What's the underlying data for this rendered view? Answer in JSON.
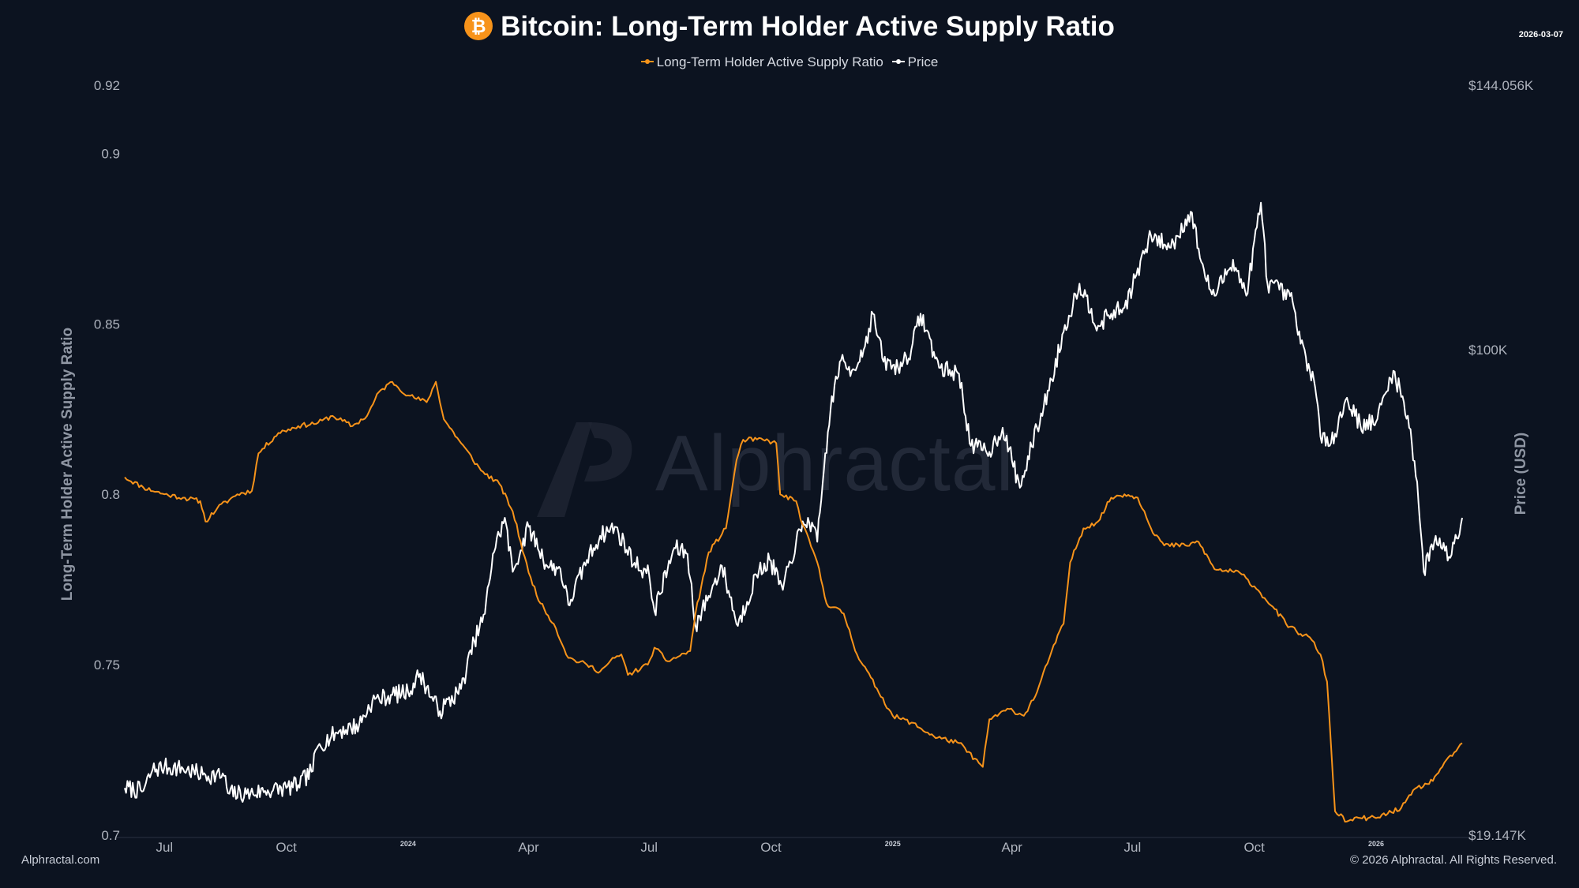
{
  "header": {
    "icon": "bitcoin-icon",
    "title": "Bitcoin: Long-Term Holder Active Supply Ratio",
    "date": "2026-03-07"
  },
  "colors": {
    "background": "#0c1320",
    "ratio": "#f7931a",
    "price": "#ffffff"
  },
  "footer": {
    "left": "Alphractal.com",
    "right": "© 2026 Alphractal. All Rights Reserved."
  },
  "watermark": "Alphractal",
  "chart_data": {
    "type": "line",
    "title": "Bitcoin: Long-Term Holder Active Supply Ratio",
    "legend": [
      "Long-Term Holder Active Supply Ratio",
      "Price"
    ],
    "legend_position": "top-center",
    "ylabel": "Long-Term Holder Active Supply Ratio",
    "y2label": "Price (USD)",
    "ylim": [
      0.7,
      0.92
    ],
    "y_ticks": [
      {
        "value": 0.92,
        "label": "0.92"
      },
      {
        "value": 0.9,
        "label": "0.9"
      },
      {
        "value": 0.85,
        "label": "0.85"
      },
      {
        "value": 0.8,
        "label": "0.8"
      },
      {
        "value": 0.75,
        "label": "0.75"
      },
      {
        "value": 0.7,
        "label": "0.7"
      }
    ],
    "y2_ticks": [
      {
        "value": 144056,
        "label": "$144.056K"
      },
      {
        "value": 100000,
        "label": "$100K"
      },
      {
        "value": 19147,
        "label": "$19.147K"
      }
    ],
    "y2_lim": [
      19147,
      144056
    ],
    "x_range": [
      "2023-06-01",
      "2026-03-07"
    ],
    "x_ticks": [
      {
        "date": "2023-07-01",
        "label": "Jul",
        "major": false
      },
      {
        "date": "2023-10-01",
        "label": "Oct",
        "major": false
      },
      {
        "date": "2024-01-01",
        "label": "2024",
        "major": true
      },
      {
        "date": "2024-04-01",
        "label": "Apr",
        "major": false
      },
      {
        "date": "2024-07-01",
        "label": "Jul",
        "major": false
      },
      {
        "date": "2024-10-01",
        "label": "Oct",
        "major": false
      },
      {
        "date": "2025-01-01",
        "label": "2025",
        "major": true
      },
      {
        "date": "2025-04-01",
        "label": "Apr",
        "major": false
      },
      {
        "date": "2025-07-01",
        "label": "Jul",
        "major": false
      },
      {
        "date": "2025-10-01",
        "label": "Oct",
        "major": false
      },
      {
        "date": "2026-01-01",
        "label": "2026",
        "major": true
      }
    ],
    "series": [
      {
        "name": "Long-Term Holder Active Supply Ratio",
        "axis": "left",
        "points": [
          [
            "2023-06-01",
            0.805
          ],
          [
            "2023-06-15",
            0.802
          ],
          [
            "2023-07-01",
            0.8
          ],
          [
            "2023-07-15",
            0.799
          ],
          [
            "2023-07-28",
            0.798
          ],
          [
            "2023-08-01",
            0.792
          ],
          [
            "2023-08-10",
            0.796
          ],
          [
            "2023-08-25",
            0.8
          ],
          [
            "2023-09-05",
            0.801
          ],
          [
            "2023-09-10",
            0.812
          ],
          [
            "2023-09-25",
            0.818
          ],
          [
            "2023-10-10",
            0.82
          ],
          [
            "2023-10-25",
            0.821
          ],
          [
            "2023-11-05",
            0.823
          ],
          [
            "2023-11-20",
            0.82
          ],
          [
            "2023-12-01",
            0.823
          ],
          [
            "2023-12-10",
            0.83
          ],
          [
            "2023-12-20",
            0.833
          ],
          [
            "2024-01-01",
            0.829
          ],
          [
            "2024-01-15",
            0.827
          ],
          [
            "2024-01-22",
            0.833
          ],
          [
            "2024-01-28",
            0.822
          ],
          [
            "2024-02-10",
            0.815
          ],
          [
            "2024-02-25",
            0.807
          ],
          [
            "2024-03-10",
            0.803
          ],
          [
            "2024-03-20",
            0.795
          ],
          [
            "2024-04-01",
            0.777
          ],
          [
            "2024-04-10",
            0.768
          ],
          [
            "2024-04-20",
            0.762
          ],
          [
            "2024-05-01",
            0.752
          ],
          [
            "2024-05-15",
            0.75
          ],
          [
            "2024-05-25",
            0.748
          ],
          [
            "2024-06-05",
            0.752
          ],
          [
            "2024-06-10",
            0.753
          ],
          [
            "2024-06-15",
            0.747
          ],
          [
            "2024-06-30",
            0.75
          ],
          [
            "2024-07-05",
            0.755
          ],
          [
            "2024-07-15",
            0.751
          ],
          [
            "2024-08-01",
            0.754
          ],
          [
            "2024-08-05",
            0.765
          ],
          [
            "2024-08-15",
            0.783
          ],
          [
            "2024-08-28",
            0.79
          ],
          [
            "2024-09-05",
            0.81
          ],
          [
            "2024-09-10",
            0.816
          ],
          [
            "2024-09-25",
            0.816
          ],
          [
            "2024-10-05",
            0.815
          ],
          [
            "2024-10-08",
            0.8
          ],
          [
            "2024-10-20",
            0.798
          ],
          [
            "2024-10-25",
            0.791
          ],
          [
            "2024-11-05",
            0.78
          ],
          [
            "2024-11-12",
            0.768
          ],
          [
            "2024-11-25",
            0.765
          ],
          [
            "2024-12-05",
            0.753
          ],
          [
            "2024-12-20",
            0.743
          ],
          [
            "2025-01-01",
            0.735
          ],
          [
            "2025-01-15",
            0.733
          ],
          [
            "2025-02-01",
            0.729
          ],
          [
            "2025-02-20",
            0.727
          ],
          [
            "2025-03-10",
            0.72
          ],
          [
            "2025-03-15",
            0.734
          ],
          [
            "2025-03-30",
            0.737
          ],
          [
            "2025-04-10",
            0.735
          ],
          [
            "2025-04-20",
            0.742
          ],
          [
            "2025-05-01",
            0.754
          ],
          [
            "2025-05-10",
            0.762
          ],
          [
            "2025-05-15",
            0.78
          ],
          [
            "2025-05-25",
            0.79
          ],
          [
            "2025-06-05",
            0.792
          ],
          [
            "2025-06-15",
            0.799
          ],
          [
            "2025-06-25",
            0.8
          ],
          [
            "2025-07-05",
            0.799
          ],
          [
            "2025-07-10",
            0.795
          ],
          [
            "2025-07-15",
            0.79
          ],
          [
            "2025-07-25",
            0.785
          ],
          [
            "2025-08-10",
            0.785
          ],
          [
            "2025-08-20",
            0.786
          ],
          [
            "2025-09-01",
            0.778
          ],
          [
            "2025-09-20",
            0.777
          ],
          [
            "2025-10-01",
            0.773
          ],
          [
            "2025-10-15",
            0.767
          ],
          [
            "2025-10-25",
            0.762
          ],
          [
            "2025-11-05",
            0.759
          ],
          [
            "2025-11-12",
            0.758
          ],
          [
            "2025-11-20",
            0.753
          ],
          [
            "2025-11-25",
            0.745
          ],
          [
            "2025-12-01",
            0.707
          ],
          [
            "2025-12-10",
            0.704
          ],
          [
            "2025-12-20",
            0.705
          ],
          [
            "2026-01-01",
            0.705
          ],
          [
            "2026-01-20",
            0.708
          ],
          [
            "2026-02-01",
            0.714
          ],
          [
            "2026-02-10",
            0.715
          ],
          [
            "2026-02-20",
            0.72
          ],
          [
            "2026-03-07",
            0.727
          ]
        ]
      },
      {
        "name": "Price",
        "axis": "right",
        "points": [
          [
            "2023-06-01",
            27000
          ],
          [
            "2023-06-15",
            26500
          ],
          [
            "2023-06-22",
            30000
          ],
          [
            "2023-07-01",
            30500
          ],
          [
            "2023-07-15",
            30200
          ],
          [
            "2023-07-30",
            29200
          ],
          [
            "2023-08-15",
            29000
          ],
          [
            "2023-08-18",
            26100
          ],
          [
            "2023-09-01",
            26000
          ],
          [
            "2023-09-15",
            26500
          ],
          [
            "2023-10-01",
            27000
          ],
          [
            "2023-10-10",
            27500
          ],
          [
            "2023-10-20",
            29700
          ],
          [
            "2023-10-25",
            34000
          ],
          [
            "2023-11-10",
            36500
          ],
          [
            "2023-11-25",
            37500
          ],
          [
            "2023-12-05",
            41500
          ],
          [
            "2023-12-20",
            42500
          ],
          [
            "2024-01-01",
            43000
          ],
          [
            "2024-01-10",
            46000
          ],
          [
            "2024-01-20",
            41500
          ],
          [
            "2024-01-25",
            39800
          ],
          [
            "2024-02-10",
            43500
          ],
          [
            "2024-02-20",
            51500
          ],
          [
            "2024-02-28",
            56000
          ],
          [
            "2024-03-05",
            66000
          ],
          [
            "2024-03-14",
            72000
          ],
          [
            "2024-03-20",
            63000
          ],
          [
            "2024-04-01",
            70500
          ],
          [
            "2024-04-15",
            64000
          ],
          [
            "2024-04-25",
            63500
          ],
          [
            "2024-05-01",
            57500
          ],
          [
            "2024-05-15",
            65000
          ],
          [
            "2024-05-25",
            69000
          ],
          [
            "2024-06-05",
            70500
          ],
          [
            "2024-06-20",
            64500
          ],
          [
            "2024-07-01",
            62500
          ],
          [
            "2024-07-05",
            56500
          ],
          [
            "2024-07-20",
            67000
          ],
          [
            "2024-07-30",
            66000
          ],
          [
            "2024-08-05",
            54000
          ],
          [
            "2024-08-15",
            59000
          ],
          [
            "2024-08-25",
            64000
          ],
          [
            "2024-09-06",
            54000
          ],
          [
            "2024-09-20",
            62500
          ],
          [
            "2024-09-30",
            65000
          ],
          [
            "2024-10-10",
            60000
          ],
          [
            "2024-10-20",
            68000
          ],
          [
            "2024-10-29",
            72000
          ],
          [
            "2024-11-05",
            68000
          ],
          [
            "2024-11-10",
            80000
          ],
          [
            "2024-11-15",
            90000
          ],
          [
            "2024-11-22",
            98000
          ],
          [
            "2024-12-01",
            96500
          ],
          [
            "2024-12-10",
            100000
          ],
          [
            "2024-12-17",
            106000
          ],
          [
            "2024-12-25",
            98000
          ],
          [
            "2025-01-05",
            97000
          ],
          [
            "2025-01-15",
            100000
          ],
          [
            "2025-01-22",
            106000
          ],
          [
            "2025-02-05",
            97000
          ],
          [
            "2025-02-20",
            96000
          ],
          [
            "2025-03-01",
            84000
          ],
          [
            "2025-03-15",
            83000
          ],
          [
            "2025-03-25",
            87000
          ],
          [
            "2025-04-07",
            77000
          ],
          [
            "2025-04-20",
            87000
          ],
          [
            "2025-05-01",
            95000
          ],
          [
            "2025-05-10",
            103000
          ],
          [
            "2025-05-22",
            111000
          ],
          [
            "2025-06-05",
            104000
          ],
          [
            "2025-06-15",
            106000
          ],
          [
            "2025-06-25",
            107000
          ],
          [
            "2025-07-10",
            116000
          ],
          [
            "2025-07-15",
            119000
          ],
          [
            "2025-07-30",
            117000
          ],
          [
            "2025-08-14",
            123000
          ],
          [
            "2025-08-25",
            112000
          ],
          [
            "2025-09-01",
            109000
          ],
          [
            "2025-09-15",
            115000
          ],
          [
            "2025-09-25",
            109000
          ],
          [
            "2025-10-06",
            124500
          ],
          [
            "2025-10-11",
            111000
          ],
          [
            "2025-10-20",
            110000
          ],
          [
            "2025-10-30",
            108000
          ],
          [
            "2025-11-05",
            101000
          ],
          [
            "2025-11-15",
            95000
          ],
          [
            "2025-11-21",
            84500
          ],
          [
            "2025-12-01",
            86000
          ],
          [
            "2025-12-10",
            92000
          ],
          [
            "2025-12-20",
            87500
          ],
          [
            "2026-01-01",
            88000
          ],
          [
            "2026-01-14",
            96500
          ],
          [
            "2026-01-25",
            89000
          ],
          [
            "2026-02-01",
            78000
          ],
          [
            "2026-02-06",
            63000
          ],
          [
            "2026-02-15",
            69000
          ],
          [
            "2026-02-25",
            65500
          ],
          [
            "2026-03-07",
            72000
          ]
        ]
      }
    ]
  }
}
